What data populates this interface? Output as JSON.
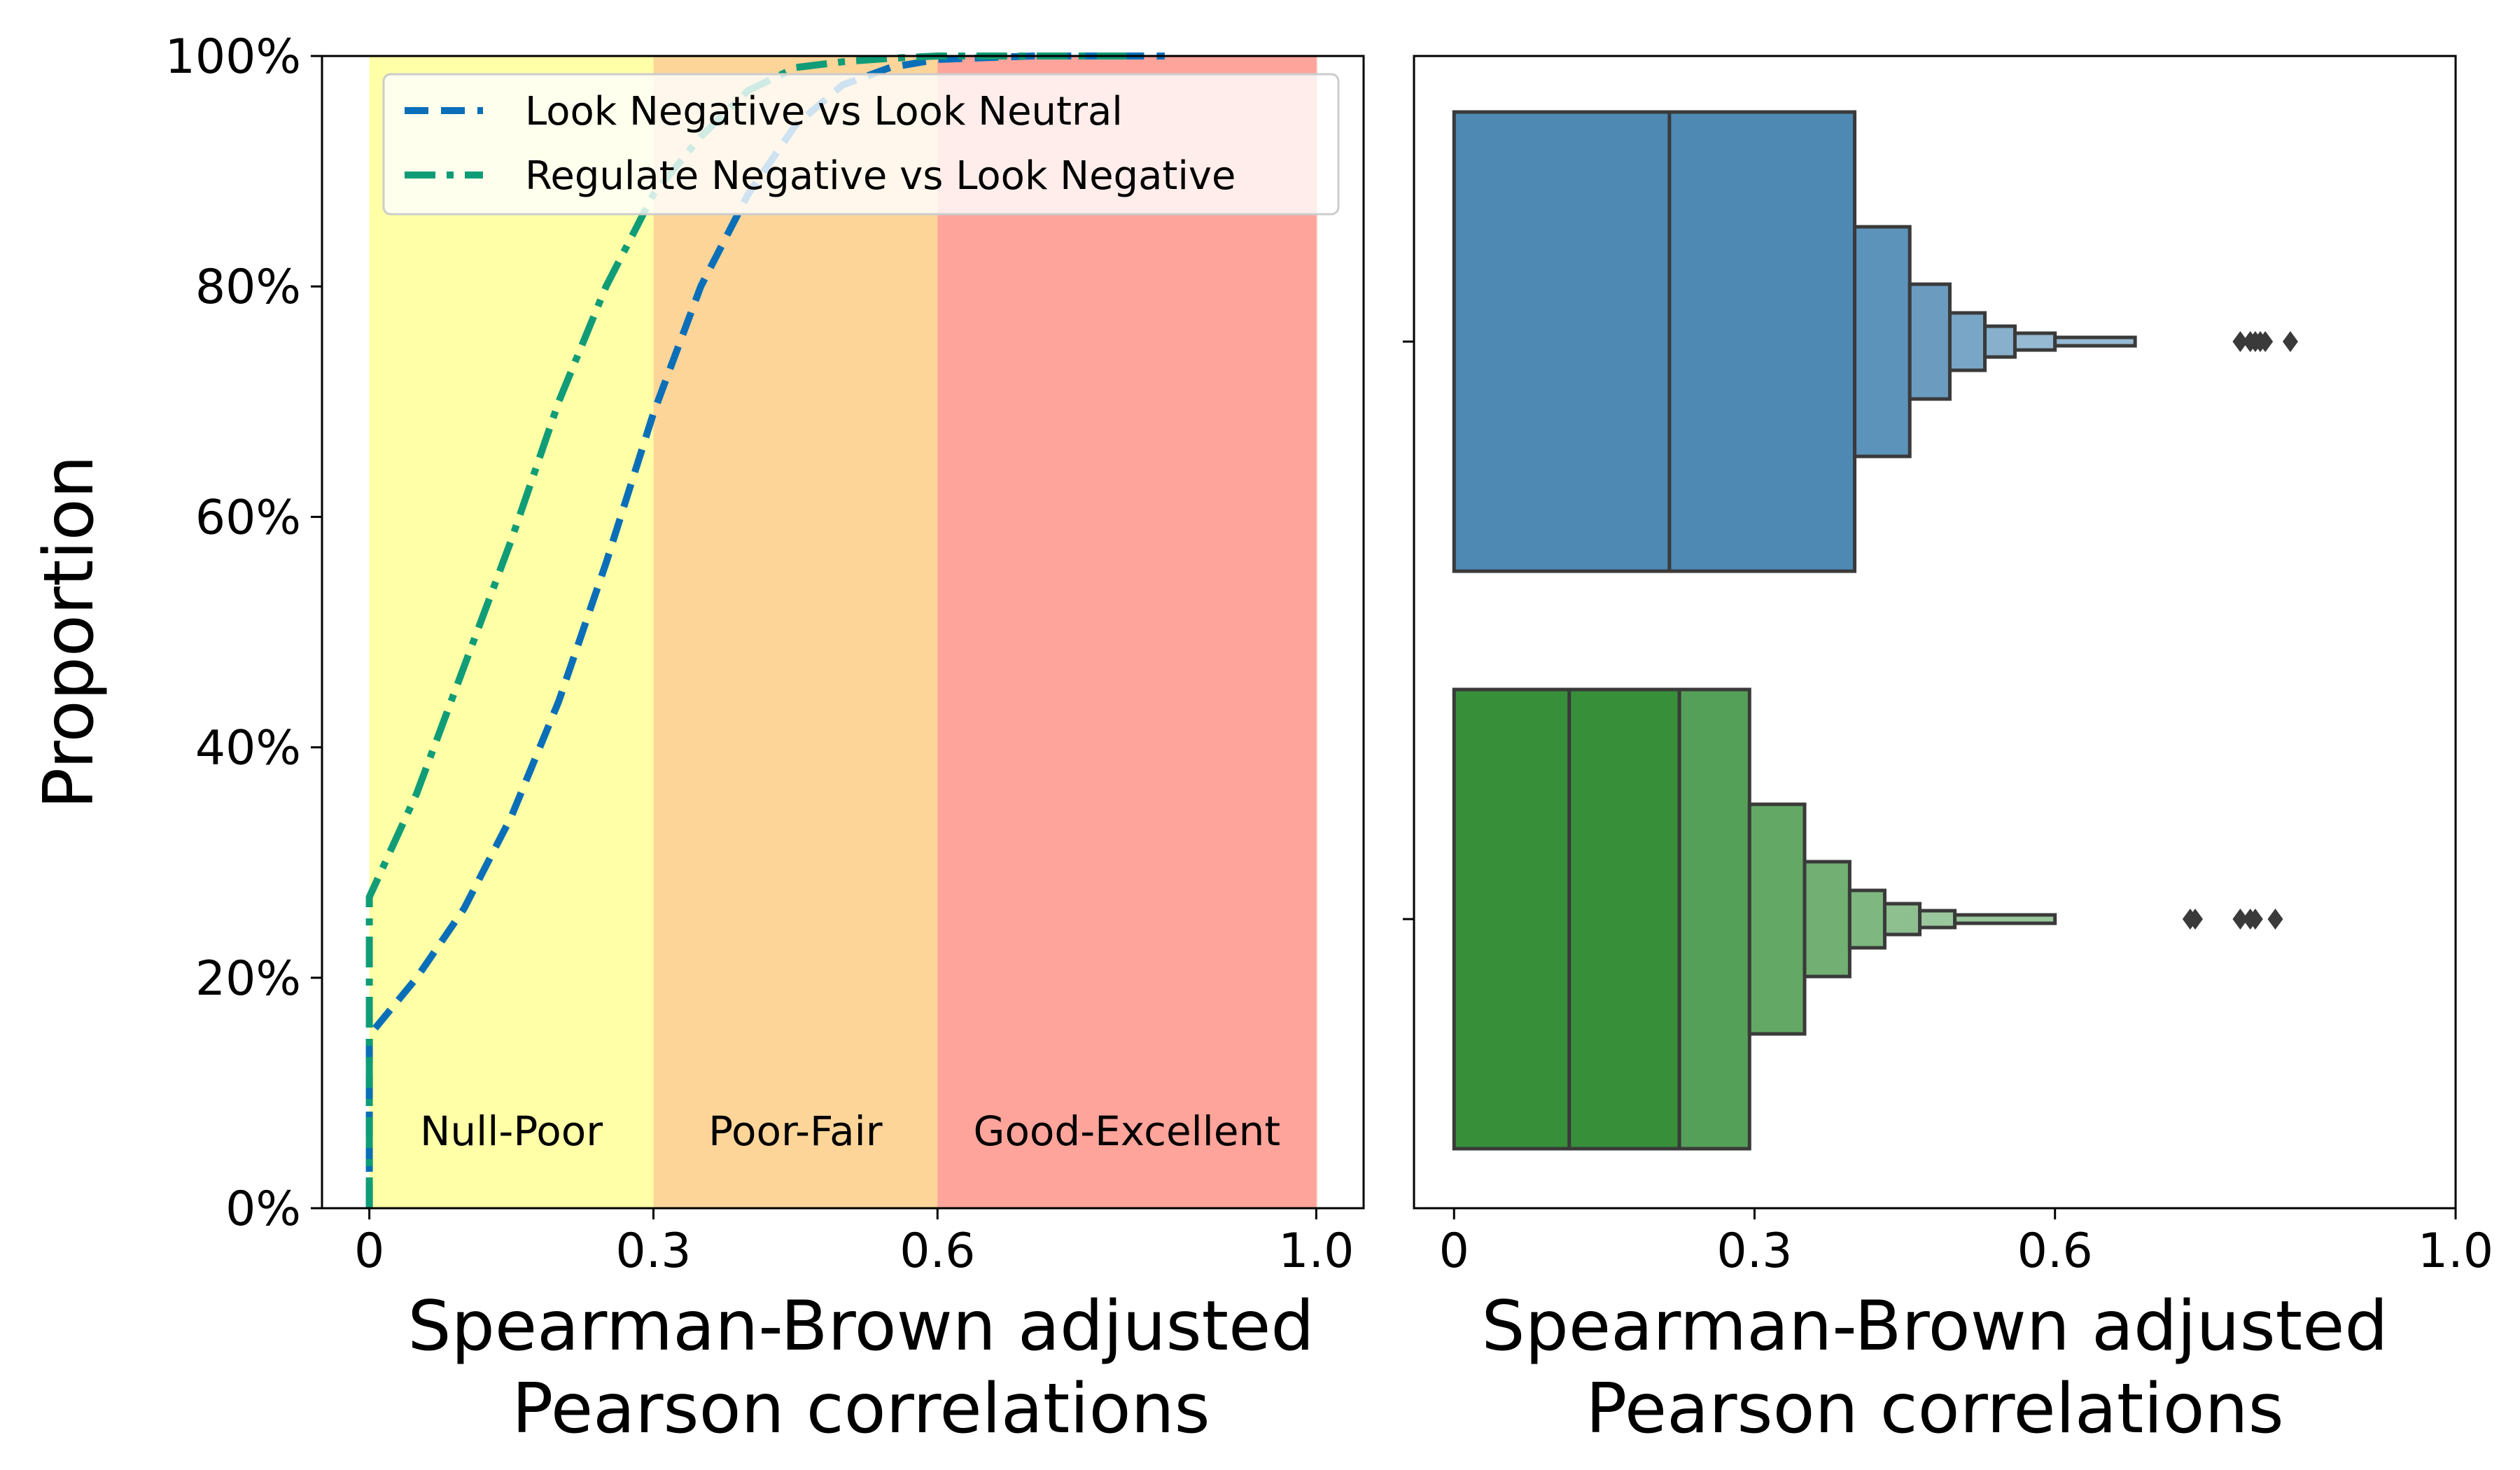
{
  "chart_data": [
    {
      "type": "line",
      "subtype": "cumulative-distribution",
      "xlabel": [
        "Spearman-Brown adjusted",
        "Pearson correlations"
      ],
      "ylabel": "Proportion",
      "xlim": [
        -0.05,
        1.05
      ],
      "ylim": [
        0,
        1
      ],
      "x_ticks": [
        {
          "value": 0,
          "label": "0"
        },
        {
          "value": 0.3,
          "label": "0.3"
        },
        {
          "value": 0.6,
          "label": "0.6"
        },
        {
          "value": 1.0,
          "label": "1.0"
        }
      ],
      "y_ticks": [
        {
          "value": 0,
          "label": "0%"
        },
        {
          "value": 0.2,
          "label": "20%"
        },
        {
          "value": 0.4,
          "label": "40%"
        },
        {
          "value": 0.6,
          "label": "60%"
        },
        {
          "value": 0.8,
          "label": "80%"
        },
        {
          "value": 1.0,
          "label": "100%"
        }
      ],
      "grid": false,
      "legend": {
        "placement": "top-right"
      },
      "regions": [
        {
          "from": 0,
          "to": 0.3,
          "label": "Null-Poor",
          "color": "#ffffa8"
        },
        {
          "from": 0.3,
          "to": 0.6,
          "label": "Poor-Fair",
          "color": "#fdd599"
        },
        {
          "from": 0.6,
          "to": 1.0,
          "label": "Good-Excellent",
          "color": "#fea49b"
        }
      ],
      "series": [
        {
          "name": "Look Negative vs Look Neutral",
          "color": "#0a6fb8",
          "dash": "dashed",
          "x": [
            0,
            0,
            0.05,
            0.1,
            0.15,
            0.2,
            0.25,
            0.3,
            0.35,
            0.4,
            0.45,
            0.5,
            0.55,
            0.6,
            0.7,
            0.8,
            0.84
          ],
          "y": [
            0,
            0.15,
            0.2,
            0.26,
            0.34,
            0.44,
            0.56,
            0.69,
            0.8,
            0.88,
            0.94,
            0.975,
            0.99,
            0.997,
            1.0,
            1.0,
            1.0
          ]
        },
        {
          "name": "Regulate Negative vs Look Negative",
          "color": "#109c77",
          "dash": "dashdot",
          "x": [
            0,
            0,
            0.05,
            0.1,
            0.15,
            0.2,
            0.25,
            0.3,
            0.35,
            0.4,
            0.45,
            0.5,
            0.55,
            0.6,
            0.7,
            0.8
          ],
          "y": [
            0,
            0.27,
            0.36,
            0.47,
            0.58,
            0.7,
            0.8,
            0.88,
            0.93,
            0.97,
            0.99,
            0.995,
            0.998,
            1.0,
            1.0,
            1.0
          ]
        }
      ]
    },
    {
      "type": "boxen",
      "xlabel": [
        "Spearman-Brown adjusted",
        "Pearson correlations"
      ],
      "xlim": [
        -0.04,
        1.0
      ],
      "x_ticks": [
        {
          "value": 0,
          "label": "0"
        },
        {
          "value": 0.3,
          "label": "0.3"
        },
        {
          "value": 0.6,
          "label": "0.6"
        },
        {
          "value": 1.0,
          "label": "1.0"
        }
      ],
      "grid": false,
      "series": [
        {
          "name": "Look Negative vs Look Neutral",
          "color": "#2e74a6",
          "median": 0.215,
          "boxes": [
            [
              0.085,
              0.33
            ],
            [
              0,
              0.4
            ],
            [
              0.4,
              0.455
            ],
            [
              0.455,
              0.495
            ],
            [
              0.495,
              0.53
            ],
            [
              0.53,
              0.56
            ],
            [
              0.56,
              0.6
            ],
            [
              0.6,
              0.68
            ]
          ],
          "outliers": [
            0.785,
            0.795,
            0.8,
            0.805,
            0.81,
            0.835
          ]
        },
        {
          "name": "Regulate Negative vs Look Negative",
          "color": "#378f3a",
          "median": 0.115,
          "boxes": [
            [
              0,
              0.225
            ],
            [
              0.225,
              0.295
            ],
            [
              0.295,
              0.35
            ],
            [
              0.35,
              0.395
            ],
            [
              0.395,
              0.43
            ],
            [
              0.43,
              0.465
            ],
            [
              0.465,
              0.5
            ],
            [
              0.5,
              0.6
            ]
          ],
          "outliers": [
            0.735,
            0.74,
            0.785,
            0.795,
            0.8,
            0.82
          ]
        }
      ]
    }
  ]
}
